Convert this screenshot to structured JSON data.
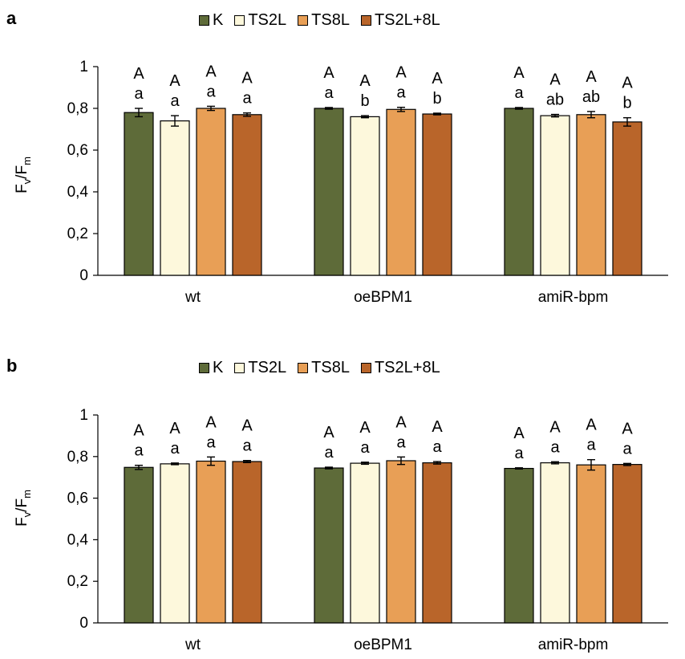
{
  "chart_data": [
    {
      "type": "bar",
      "panel_label": "a",
      "categories": [
        "wt",
        "oeBPM1",
        "amiR-bpm"
      ],
      "series": [
        {
          "name": "K",
          "color": "#5e6b39",
          "values": [
            0.78,
            0.8,
            0.8
          ],
          "errors": [
            0.02,
            0.004,
            0.004
          ]
        },
        {
          "name": "TS2L",
          "color": "#fdf8dc",
          "values": [
            0.74,
            0.76,
            0.765
          ],
          "errors": [
            0.025,
            0.005,
            0.006
          ]
        },
        {
          "name": "TS8L",
          "color": "#e89f56",
          "values": [
            0.8,
            0.795,
            0.77
          ],
          "errors": [
            0.01,
            0.01,
            0.015
          ]
        },
        {
          "name": "TS2L+8L",
          "color": "#b9652a",
          "values": [
            0.77,
            0.773,
            0.735
          ],
          "errors": [
            0.008,
            0.004,
            0.02
          ]
        }
      ],
      "letters_upper": [
        [
          "A",
          "A",
          "A"
        ],
        [
          "A",
          "A",
          "A"
        ],
        [
          "A",
          "A",
          "A"
        ],
        [
          "A",
          "A",
          "A"
        ]
      ],
      "letters_lower": [
        [
          "a",
          "a",
          "a"
        ],
        [
          "a",
          "b",
          "ab"
        ],
        [
          "a",
          "a",
          "ab"
        ],
        [
          "a",
          "b",
          "b"
        ]
      ],
      "yticks": [
        "0",
        "0,2",
        "0,4",
        "0,6",
        "0,8",
        "1"
      ],
      "ylim": [
        0,
        1
      ],
      "ylabel_main": "F",
      "ylabel_sub1": "v",
      "ylabel_sep": "/F",
      "ylabel_sub2": "m",
      "legend_position": "top"
    },
    {
      "type": "bar",
      "panel_label": "b",
      "categories": [
        "wt",
        "oeBPM1",
        "amiR-bpm"
      ],
      "series": [
        {
          "name": "K",
          "color": "#5e6b39",
          "values": [
            0.748,
            0.745,
            0.743
          ],
          "errors": [
            0.01,
            0.004,
            0.003
          ]
        },
        {
          "name": "TS2L",
          "color": "#fdf8dc",
          "values": [
            0.765,
            0.768,
            0.77
          ],
          "errors": [
            0.004,
            0.005,
            0.005
          ]
        },
        {
          "name": "TS8L",
          "color": "#e89f56",
          "values": [
            0.778,
            0.78,
            0.76
          ],
          "errors": [
            0.02,
            0.018,
            0.025
          ]
        },
        {
          "name": "TS2L+8L",
          "color": "#b9652a",
          "values": [
            0.776,
            0.77,
            0.762
          ],
          "errors": [
            0.005,
            0.006,
            0.005
          ]
        }
      ],
      "letters_upper": [
        [
          "A",
          "A",
          "A"
        ],
        [
          "A",
          "A",
          "A"
        ],
        [
          "A",
          "A",
          "A"
        ],
        [
          "A",
          "A",
          "A"
        ]
      ],
      "letters_lower": [
        [
          "a",
          "a",
          "a"
        ],
        [
          "a",
          "a",
          "a"
        ],
        [
          "a",
          "a",
          "a"
        ],
        [
          "a",
          "a",
          "a"
        ]
      ],
      "yticks": [
        "0",
        "0,2",
        "0,4",
        "0,6",
        "0,8",
        "1"
      ],
      "ylim": [
        0,
        1
      ],
      "ylabel_main": "F",
      "ylabel_sub1": "v",
      "ylabel_sep": "/F",
      "ylabel_sub2": "m",
      "legend_position": "top"
    }
  ]
}
